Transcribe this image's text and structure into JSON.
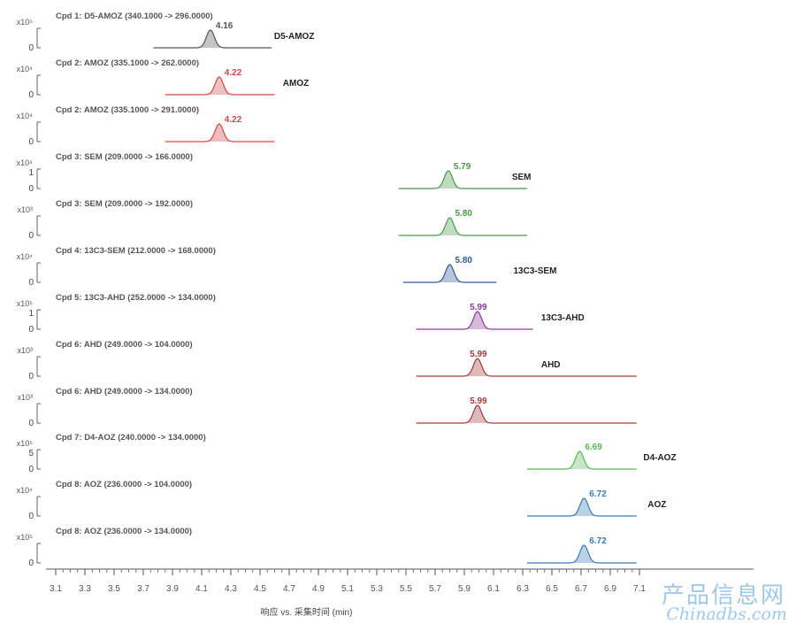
{
  "chart_data": {
    "type": "line",
    "xlabel": "响应 vs. 采集时间 (min)",
    "xlim": [
      3.0,
      7.85
    ],
    "x_ticks": [
      "3.1",
      "3.3",
      "3.5",
      "3.7",
      "3.9",
      "4.1",
      "4.3",
      "4.5",
      "4.7",
      "4.9",
      "5.1",
      "5.3",
      "5.5",
      "5.7",
      "5.9",
      "6.1",
      "6.3",
      "6.5",
      "6.7",
      "6.9",
      "7.1"
    ],
    "panels": [
      {
        "title": "Cpd 1: D5-AMOZ (340.1000 -> 296.0000)",
        "scale": "x10⁵",
        "yticks": [
          "0"
        ],
        "x_range": [
          3.77,
          4.58
        ],
        "peak_rt": 4.16,
        "peak_label": "4.16",
        "compound": "D5-AMOZ",
        "color": "#555555"
      },
      {
        "title": "Cpd 2: AMOZ (335.1000 -> 262.0000)",
        "scale": "x10⁴",
        "yticks": [
          "0"
        ],
        "x_range": [
          3.85,
          4.6
        ],
        "peak_rt": 4.22,
        "peak_label": "4.22",
        "compound": "AMOZ",
        "color": "#d04848"
      },
      {
        "title": "Cpd 2: AMOZ (335.1000 -> 291.0000)",
        "scale": "x10⁴",
        "yticks": [
          "0"
        ],
        "x_range": [
          3.85,
          4.6
        ],
        "peak_rt": 4.22,
        "peak_label": "4.22",
        "compound": "",
        "color": "#d04848"
      },
      {
        "title": "Cpd 3: SEM (209.0000 -> 166.0000)",
        "scale": "x10⁴",
        "yticks": [
          "1",
          "0"
        ],
        "x_range": [
          5.45,
          6.33
        ],
        "peak_rt": 5.79,
        "peak_label": "5.79",
        "compound": "SEM",
        "color": "#4a9a4a"
      },
      {
        "title": "Cpd 3: SEM (209.0000 -> 192.0000)",
        "scale": "x10³",
        "yticks": [
          "0"
        ],
        "x_range": [
          5.45,
          6.33
        ],
        "peak_rt": 5.8,
        "peak_label": "5.80",
        "compound": "",
        "color": "#4a9a4a"
      },
      {
        "title": "Cpd 4: 13C3-SEM (212.0000 -> 168.0000)",
        "scale": "x10⁴",
        "yticks": [
          "0"
        ],
        "x_range": [
          5.48,
          6.12
        ],
        "peak_rt": 5.8,
        "peak_label": "5.80",
        "compound": "13C3-SEM",
        "color": "#2f5a9a"
      },
      {
        "title": "Cpd 5: 13C3-AHD (252.0000 -> 134.0000)",
        "scale": "x10⁵",
        "yticks": [
          "1",
          "0"
        ],
        "x_range": [
          5.57,
          6.37
        ],
        "peak_rt": 5.99,
        "peak_label": "5.99",
        "compound": "13C3-AHD",
        "color": "#8a3a9a"
      },
      {
        "title": "Cpd 6: AHD (249.0000 -> 104.0000)",
        "scale": "x10³",
        "yticks": [
          "0"
        ],
        "x_range": [
          5.57,
          7.08
        ],
        "peak_rt": 5.99,
        "peak_label": "5.99",
        "compound": "AHD",
        "color": "#a33a3a"
      },
      {
        "title": "Cpd 6: AHD (249.0000 -> 134.0000)",
        "scale": "x10³",
        "yticks": [
          "0"
        ],
        "x_range": [
          5.57,
          7.08
        ],
        "peak_rt": 5.99,
        "peak_label": "5.99",
        "compound": "",
        "color": "#a33a3a"
      },
      {
        "title": "Cpd 7: D4-AOZ (240.0000 -> 134.0000)",
        "scale": "x10⁵",
        "yticks": [
          "5",
          "0"
        ],
        "x_range": [
          6.33,
          7.08
        ],
        "peak_rt": 6.69,
        "peak_label": "6.69",
        "compound": "D4-AOZ",
        "color": "#5cb85c"
      },
      {
        "title": "Cpd 8: AOZ (236.0000 -> 104.0000)",
        "scale": "x10⁴",
        "yticks": [
          "0"
        ],
        "x_range": [
          6.33,
          7.08
        ],
        "peak_rt": 6.72,
        "peak_label": "6.72",
        "compound": "AOZ",
        "color": "#3a7ab8"
      },
      {
        "title": "Cpd 8: AOZ (236.0000 -> 134.0000)",
        "scale": "x10⁵",
        "yticks": [
          "0"
        ],
        "x_range": [
          6.33,
          7.08
        ],
        "peak_rt": 6.72,
        "peak_label": "6.72",
        "compound": "",
        "color": "#3a7ab8"
      }
    ]
  },
  "watermark": {
    "line1": "产品信息网",
    "line2": "Chinadbs.com"
  }
}
